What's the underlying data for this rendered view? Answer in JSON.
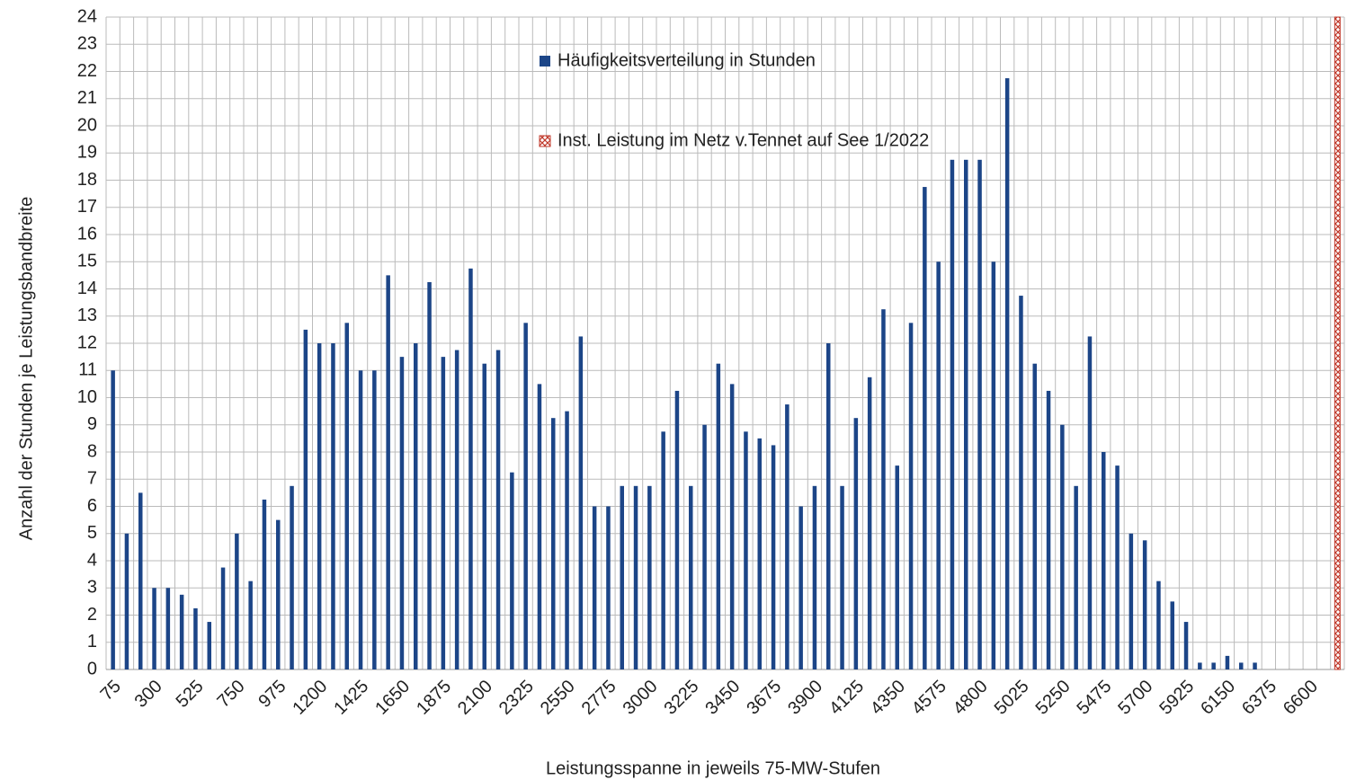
{
  "chart_data": {
    "type": "bar",
    "x_label": "Leistungsspanne in jeweils 75-MW-Stufen",
    "y_label": "Anzahl der Stunden je Leistungsbandbreite",
    "categories": [
      "75",
      null,
      null,
      "300",
      null,
      null,
      "525",
      null,
      null,
      "750",
      null,
      null,
      "975",
      null,
      null,
      "1200",
      null,
      null,
      "1425",
      null,
      null,
      "1650",
      null,
      null,
      "1875",
      null,
      null,
      "2100",
      null,
      null,
      "2325",
      null,
      null,
      "2550",
      null,
      null,
      "2775",
      null,
      null,
      "3000",
      null,
      null,
      "3225",
      null,
      null,
      "3450",
      null,
      null,
      "3675",
      null,
      null,
      "3900",
      null,
      null,
      "4125",
      null,
      null,
      "4350",
      null,
      null,
      "4575",
      null,
      null,
      "4800",
      null,
      null,
      "5025",
      null,
      null,
      "5250",
      null,
      null,
      "5475",
      null,
      null,
      "5700",
      null,
      null,
      "5925",
      null,
      null,
      "6150",
      null,
      null,
      "6375",
      null,
      null,
      "6600",
      null,
      null
    ],
    "series": [
      {
        "name": "Häufigkeitsverteilung in Stunden",
        "color": "#1c4587",
        "values": [
          11,
          5,
          6.5,
          3,
          3,
          2.75,
          2.25,
          1.75,
          3.75,
          5,
          3.25,
          6.25,
          5.5,
          6.75,
          12.5,
          12,
          12,
          12.75,
          11,
          11,
          14.5,
          11.5,
          12,
          14.25,
          11.5,
          11.75,
          14.75,
          11.25,
          11.75,
          7.25,
          12.75,
          10.5,
          9.25,
          9.5,
          12.25,
          6,
          6,
          6.75,
          6.75,
          6.75,
          8.75,
          10.25,
          6.75,
          9,
          11.25,
          10.5,
          8.75,
          8.5,
          8.25,
          9.75,
          6,
          6.75,
          12,
          6.75,
          9.25,
          10.75,
          13.25,
          7.5,
          12.75,
          17.75,
          15,
          18.75,
          18.75,
          18.75,
          15,
          21.75,
          13.75,
          11.25,
          10.25,
          9,
          6.75,
          12.25,
          8,
          7.5,
          5,
          4.75,
          3.25,
          2.5,
          1.75,
          0.25,
          0.25,
          0.5,
          0.25,
          0.25,
          0,
          0,
          0,
          0,
          0,
          0
        ]
      },
      {
        "name": "Inst. Leistung im Netz v.Tennet auf See 1/2022",
        "color": "#c0392b",
        "values": [
          null,
          null,
          null,
          null,
          null,
          null,
          null,
          null,
          null,
          null,
          null,
          null,
          null,
          null,
          null,
          null,
          null,
          null,
          null,
          null,
          null,
          null,
          null,
          null,
          null,
          null,
          null,
          null,
          null,
          null,
          null,
          null,
          null,
          null,
          null,
          null,
          null,
          null,
          null,
          null,
          null,
          null,
          null,
          null,
          null,
          null,
          null,
          null,
          null,
          null,
          null,
          null,
          null,
          null,
          null,
          null,
          null,
          null,
          null,
          null,
          null,
          null,
          null,
          null,
          null,
          null,
          null,
          null,
          null,
          null,
          null,
          null,
          null,
          null,
          null,
          null,
          null,
          null,
          null,
          null,
          null,
          null,
          null,
          null,
          null,
          null,
          null,
          null,
          null,
          24
        ]
      }
    ],
    "ylim": [
      0,
      24
    ],
    "yticks": [
      0,
      1,
      2,
      3,
      4,
      5,
      6,
      7,
      8,
      9,
      10,
      11,
      12,
      13,
      14,
      15,
      16,
      17,
      18,
      19,
      20,
      21,
      22,
      23,
      24
    ],
    "grid": true
  }
}
